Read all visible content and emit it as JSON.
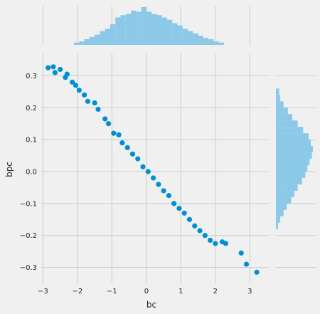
{
  "chart_data": {
    "type": "scatter",
    "xlabel": "bc",
    "ylabel": "bpc",
    "xlim": [
      -3.05,
      3.55
    ],
    "ylim": [
      -0.35,
      0.37
    ],
    "xticks": [
      -3,
      -2,
      -1,
      0,
      1,
      2,
      3
    ],
    "yticks": [
      -0.3,
      -0.2,
      -0.1,
      0.0,
      0.1,
      0.2,
      0.3
    ],
    "xtick_labels": [
      "−3",
      "−2",
      "−1",
      "0",
      "1",
      "2",
      "3"
    ],
    "ytick_labels": [
      "−0.3",
      "−0.2",
      "−0.1",
      "0.0",
      "0.1",
      "0.2",
      "0.3"
    ],
    "grid": true,
    "colors": {
      "points": "#008fd5",
      "hist": "#8cc8e8",
      "background": "#f0f0f0",
      "grid": "#cbcbcb"
    },
    "scatter_points": [
      {
        "x": -2.85,
        "y": 0.325
      },
      {
        "x": -2.7,
        "y": 0.328
      },
      {
        "x": -2.65,
        "y": 0.31
      },
      {
        "x": -2.5,
        "y": 0.32
      },
      {
        "x": -2.35,
        "y": 0.295
      },
      {
        "x": -2.3,
        "y": 0.305
      },
      {
        "x": -2.15,
        "y": 0.28
      },
      {
        "x": -2.05,
        "y": 0.27
      },
      {
        "x": -1.95,
        "y": 0.255
      },
      {
        "x": -1.8,
        "y": 0.24
      },
      {
        "x": -1.7,
        "y": 0.22
      },
      {
        "x": -1.5,
        "y": 0.215
      },
      {
        "x": -1.4,
        "y": 0.195
      },
      {
        "x": -1.2,
        "y": 0.165
      },
      {
        "x": -1.1,
        "y": 0.15
      },
      {
        "x": -0.95,
        "y": 0.12
      },
      {
        "x": -0.8,
        "y": 0.115
      },
      {
        "x": -0.7,
        "y": 0.09
      },
      {
        "x": -0.55,
        "y": 0.075
      },
      {
        "x": -0.4,
        "y": 0.055
      },
      {
        "x": -0.25,
        "y": 0.04
      },
      {
        "x": -0.1,
        "y": 0.015
      },
      {
        "x": 0.05,
        "y": 0.0
      },
      {
        "x": 0.2,
        "y": -0.02
      },
      {
        "x": 0.35,
        "y": -0.04
      },
      {
        "x": 0.5,
        "y": -0.06
      },
      {
        "x": 0.65,
        "y": -0.075
      },
      {
        "x": 0.8,
        "y": -0.1
      },
      {
        "x": 0.95,
        "y": -0.115
      },
      {
        "x": 1.1,
        "y": -0.13
      },
      {
        "x": 1.25,
        "y": -0.15
      },
      {
        "x": 1.4,
        "y": -0.17
      },
      {
        "x": 1.55,
        "y": -0.185
      },
      {
        "x": 1.7,
        "y": -0.2
      },
      {
        "x": 1.85,
        "y": -0.215
      },
      {
        "x": 2.0,
        "y": -0.225
      },
      {
        "x": 2.2,
        "y": -0.22
      },
      {
        "x": 2.3,
        "y": -0.225
      },
      {
        "x": 2.75,
        "y": -0.255
      },
      {
        "x": 2.9,
        "y": -0.29
      },
      {
        "x": 3.2,
        "y": -0.315
      }
    ],
    "marginal_x_hist": {
      "bin_width": 0.15,
      "bins": [
        {
          "x0": -2.1,
          "count": 2
        },
        {
          "x0": -1.95,
          "count": 3
        },
        {
          "x0": -1.8,
          "count": 5
        },
        {
          "x0": -1.65,
          "count": 7
        },
        {
          "x0": -1.5,
          "count": 9
        },
        {
          "x0": -1.35,
          "count": 12
        },
        {
          "x0": -1.2,
          "count": 14
        },
        {
          "x0": -1.05,
          "count": 18
        },
        {
          "x0": -0.9,
          "count": 24
        },
        {
          "x0": -0.75,
          "count": 26
        },
        {
          "x0": -0.6,
          "count": 27
        },
        {
          "x0": -0.45,
          "count": 30
        },
        {
          "x0": -0.3,
          "count": 29
        },
        {
          "x0": -0.15,
          "count": 33
        },
        {
          "x0": 0.0,
          "count": 29
        },
        {
          "x0": 0.15,
          "count": 27
        },
        {
          "x0": 0.3,
          "count": 26
        },
        {
          "x0": 0.45,
          "count": 24
        },
        {
          "x0": 0.6,
          "count": 22
        },
        {
          "x0": 0.75,
          "count": 19
        },
        {
          "x0": 0.9,
          "count": 17
        },
        {
          "x0": 1.05,
          "count": 14
        },
        {
          "x0": 1.2,
          "count": 12
        },
        {
          "x0": 1.35,
          "count": 10
        },
        {
          "x0": 1.5,
          "count": 8
        },
        {
          "x0": 1.65,
          "count": 6
        },
        {
          "x0": 1.8,
          "count": 5
        },
        {
          "x0": 1.95,
          "count": 3
        },
        {
          "x0": 2.1,
          "count": 2
        }
      ]
    },
    "marginal_y_hist": {
      "bin_width": 0.02,
      "bins": [
        {
          "y0": -0.18,
          "count": 2
        },
        {
          "y0": -0.16,
          "count": 4
        },
        {
          "y0": -0.14,
          "count": 7
        },
        {
          "y0": -0.12,
          "count": 10
        },
        {
          "y0": -0.1,
          "count": 14
        },
        {
          "y0": -0.08,
          "count": 17
        },
        {
          "y0": -0.06,
          "count": 20
        },
        {
          "y0": -0.04,
          "count": 24
        },
        {
          "y0": -0.02,
          "count": 27
        },
        {
          "y0": 0.0,
          "count": 29
        },
        {
          "y0": 0.02,
          "count": 31
        },
        {
          "y0": 0.04,
          "count": 33
        },
        {
          "y0": 0.06,
          "count": 34
        },
        {
          "y0": 0.08,
          "count": 32
        },
        {
          "y0": 0.1,
          "count": 30
        },
        {
          "y0": 0.12,
          "count": 25
        },
        {
          "y0": 0.14,
          "count": 20
        },
        {
          "y0": 0.16,
          "count": 15
        },
        {
          "y0": 0.18,
          "count": 11
        },
        {
          "y0": 0.2,
          "count": 7
        },
        {
          "y0": 0.22,
          "count": 4
        },
        {
          "y0": 0.24,
          "count": 3
        }
      ]
    }
  }
}
